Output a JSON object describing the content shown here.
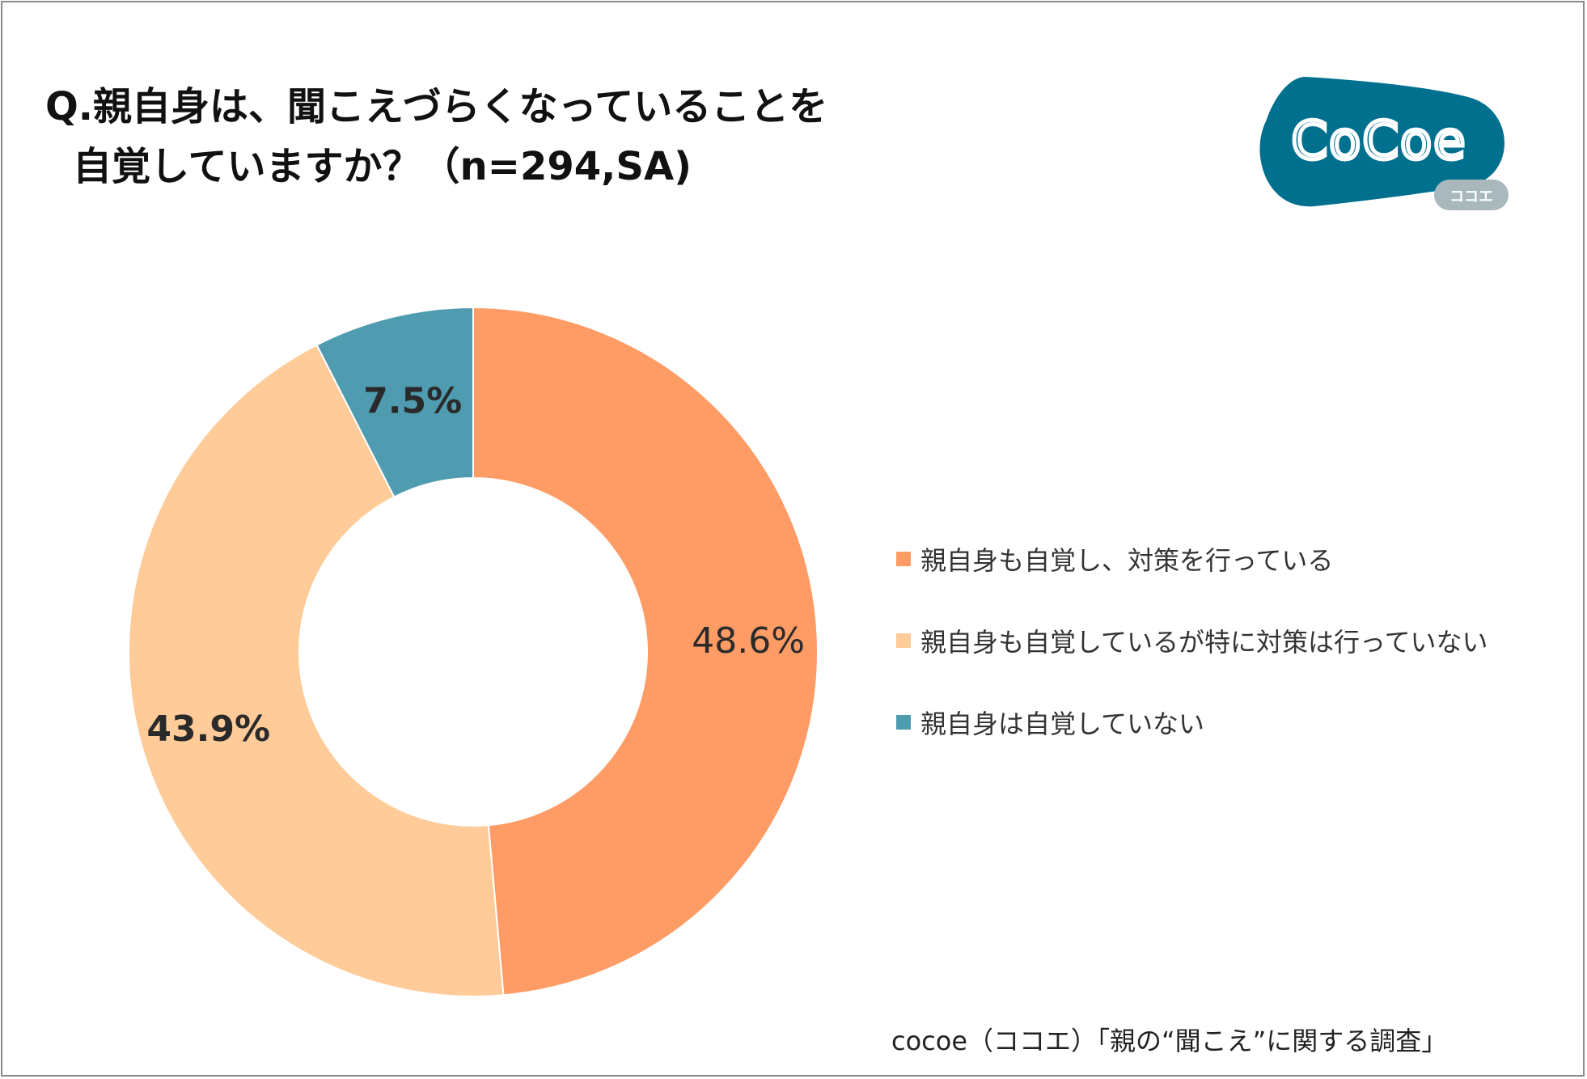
{
  "title": {
    "line1": "Q.親自身は、聞こえづらくなっていることを",
    "line2": "自覚していますか？（n=294,SA)"
  },
  "logo": {
    "text": "CoCoe",
    "sub": "ココエ",
    "color": "#00708F",
    "sub_color": "#A8B8BD"
  },
  "source": "cocoe（ココエ）「親の“聞こえ”に関する調査」",
  "chart_data": {
    "type": "pie",
    "donut": true,
    "start": "top",
    "direction": "clockwise",
    "legend_position": "right",
    "categories": [
      "親自身も自覚し、対策を行っている",
      "親自身も自覚しているが特に対策は行っていない",
      "親自身は自覚していない"
    ],
    "values": [
      48.6,
      43.9,
      7.5
    ],
    "labels": [
      "48.6%",
      "43.9%",
      "7.5%"
    ],
    "colors": [
      "#FF9C66",
      "#FFCB99",
      "#4F9BB0"
    ],
    "label_bold": [
      false,
      true,
      true
    ]
  }
}
